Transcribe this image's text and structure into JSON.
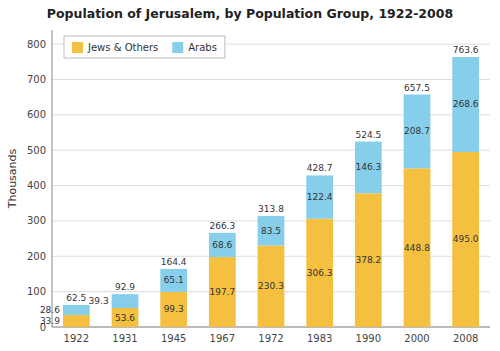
{
  "chart_data": {
    "type": "bar",
    "stacked": true,
    "title": "Population of Jerusalem, by Population Group, 1922-2008",
    "ylabel": "Thousands",
    "categories": [
      "1922",
      "1931",
      "1945",
      "1967",
      "1972",
      "1983",
      "1990",
      "2000",
      "2008"
    ],
    "series": [
      {
        "name": "Jews & Others",
        "color": "#F5C040",
        "values": [
          33.9,
          53.6,
          99.3,
          197.7,
          230.3,
          306.3,
          378.2,
          448.8,
          495.0
        ],
        "value_labels": [
          "33.9",
          "53.6",
          "99.3",
          "197.7",
          "230.3",
          "306.3",
          "378.2",
          "448.8",
          "495.0"
        ]
      },
      {
        "name": "Arabs",
        "color": "#87CEEB",
        "values": [
          28.6,
          39.3,
          65.1,
          68.6,
          83.5,
          122.4,
          146.3,
          208.7,
          268.6
        ]
      }
    ],
    "totals": [
      62.5,
      92.9,
      164.4,
      266.3,
      313.8,
      428.7,
      524.5,
      657.5,
      763.6
    ],
    "ylim": [
      0,
      840
    ],
    "yticks": [
      0,
      100,
      200,
      300,
      400,
      500,
      600,
      700,
      800
    ],
    "grid": true,
    "legend": "upper left",
    "data_labels": true
  }
}
